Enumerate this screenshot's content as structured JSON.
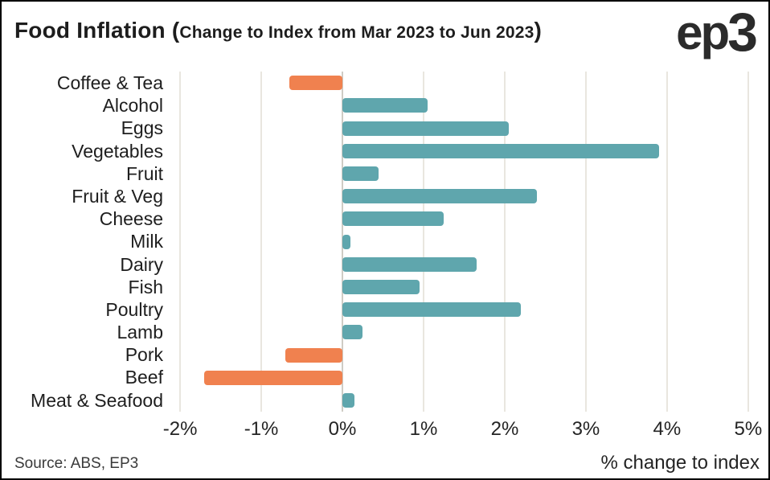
{
  "header": {
    "title_main": "Food Inflation (",
    "title_sub": "Change to Index from Mar 2023 to Jun 2023",
    "title_close": ")",
    "logo_prefix": "ep",
    "logo_suffix": "3"
  },
  "footer": {
    "source": "Source: ABS, EP3",
    "xlabel": "% change to index"
  },
  "chart_data": {
    "type": "bar",
    "orientation": "horizontal",
    "title": "Food Inflation (Change to Index from Mar 2023 to Jun 2023)",
    "categories": [
      "Coffee & Tea",
      "Alcohol",
      "Eggs",
      "Vegetables",
      "Fruit",
      "Fruit & Veg",
      "Cheese",
      "Milk",
      "Dairy",
      "Fish",
      "Poultry",
      "Lamb",
      "Pork",
      "Beef",
      "Meat & Seafood"
    ],
    "values": [
      -0.65,
      1.05,
      2.05,
      3.9,
      0.45,
      2.4,
      1.25,
      0.1,
      1.65,
      0.95,
      2.2,
      0.25,
      -0.7,
      -1.7,
      0.15
    ],
    "unit": "%",
    "xlabel": "% change to index",
    "xlim": [
      -2.1,
      5.14
    ],
    "xticks": [
      -2,
      -1,
      0,
      1,
      2,
      3,
      4,
      5
    ],
    "xtick_labels": [
      "-2%",
      "-1%",
      "0%",
      "1%",
      "2%",
      "3%",
      "4%",
      "5%"
    ],
    "grid": true,
    "legend": false,
    "colors": {
      "positive": "#5fa6ad",
      "negative": "#f0814f",
      "gridline": "#e9e6df",
      "zeroline": "#cfccc5",
      "text": "#1e1e1e",
      "background": "#ffffff",
      "border": "#000000"
    }
  }
}
